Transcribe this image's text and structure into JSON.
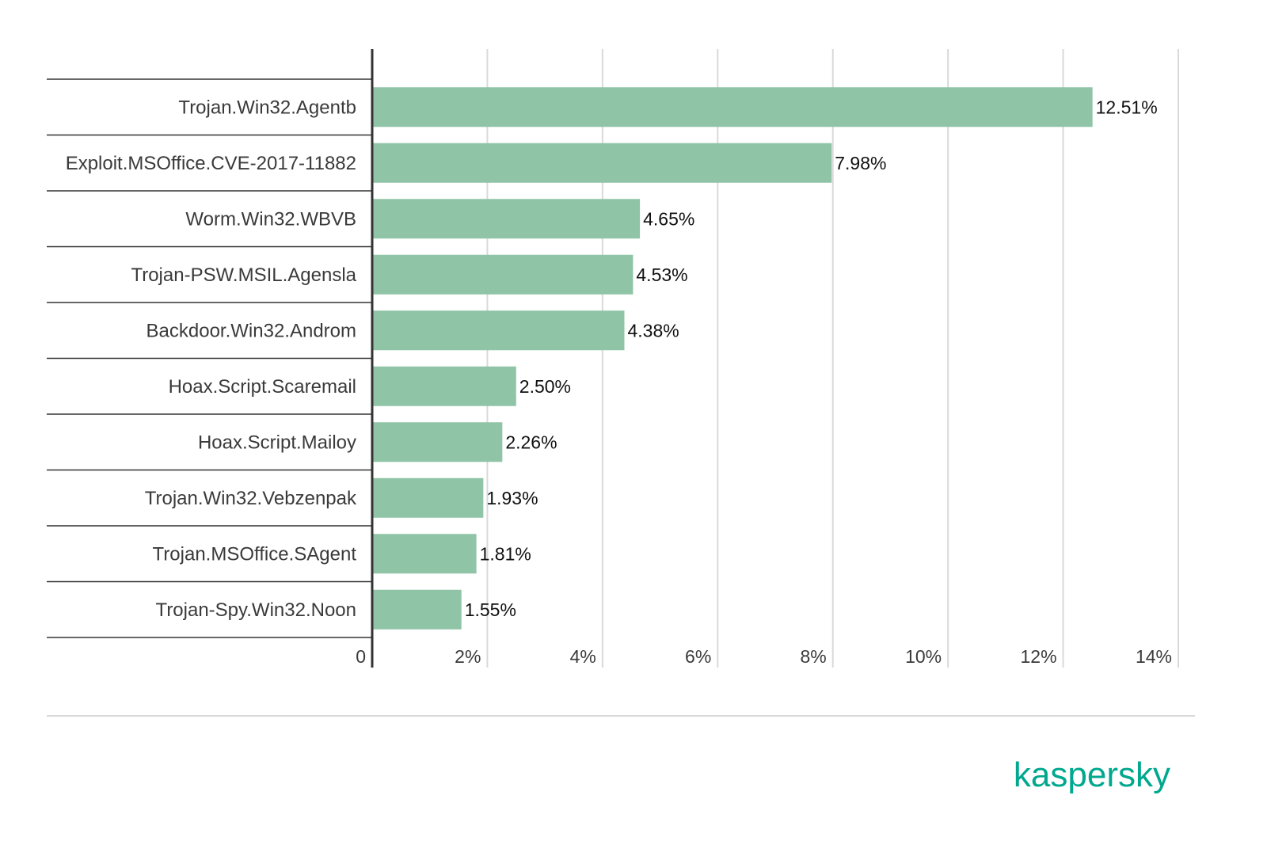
{
  "chart_data": {
    "type": "bar",
    "orientation": "horizontal",
    "categories": [
      "Trojan.Win32.Agentb",
      "Exploit.MSOffice.CVE-2017-11882",
      "Worm.Win32.WBVB",
      "Trojan-PSW.MSIL.Agensla",
      "Backdoor.Win32.Androm",
      "Hoax.Script.Scaremail",
      "Hoax.Script.Mailoy",
      "Trojan.Win32.Vebzenpak",
      "Trojan.MSOffice.SAgent",
      "Trojan-Spy.Win32.Noon"
    ],
    "values": [
      12.51,
      7.98,
      4.65,
      4.53,
      4.38,
      2.5,
      2.26,
      1.93,
      1.81,
      1.55
    ],
    "value_labels": [
      "12.51%",
      "7.98%",
      "4.65%",
      "4.53%",
      "4.38%",
      "2.50%",
      "2.26%",
      "1.93%",
      "1.81%",
      "1.55%"
    ],
    "xlim": [
      0,
      14
    ],
    "x_ticks": [
      0,
      2,
      4,
      6,
      8,
      10,
      12,
      14
    ],
    "x_tick_labels": [
      "0",
      "2%",
      "4%",
      "6%",
      "8%",
      "10%",
      "12%",
      "14%"
    ],
    "title": "",
    "xlabel": "",
    "ylabel": "",
    "grid": "vertical",
    "legend": "none"
  },
  "brand": {
    "logo_text": "kaspersky",
    "logo_color": "#00a88e"
  },
  "colors": {
    "bar": "#8fc4a6",
    "grid": "#d9d9d9",
    "axis": "#333333",
    "row_line": "#333333",
    "footer_line": "#d9d9d9"
  }
}
